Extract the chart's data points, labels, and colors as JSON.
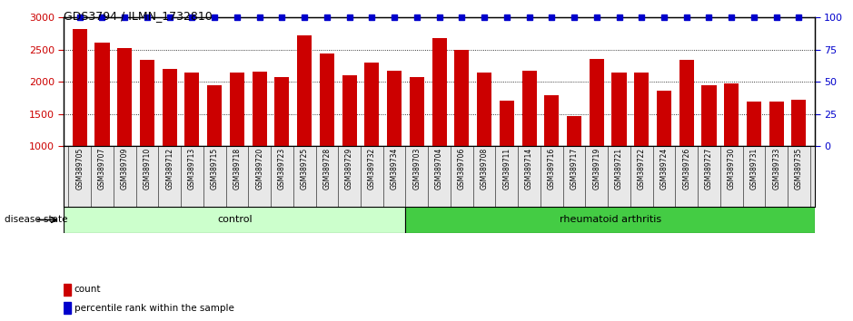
{
  "title": "GDS3794 / ILMN_1732810",
  "samples": [
    "GSM389705",
    "GSM389707",
    "GSM389709",
    "GSM389710",
    "GSM389712",
    "GSM389713",
    "GSM389715",
    "GSM389718",
    "GSM389720",
    "GSM389723",
    "GSM389725",
    "GSM389728",
    "GSM389729",
    "GSM389732",
    "GSM389734",
    "GSM389703",
    "GSM389704",
    "GSM389706",
    "GSM389708",
    "GSM389711",
    "GSM389714",
    "GSM389716",
    "GSM389717",
    "GSM389719",
    "GSM389721",
    "GSM389722",
    "GSM389724",
    "GSM389726",
    "GSM389727",
    "GSM389730",
    "GSM389731",
    "GSM389733",
    "GSM389735"
  ],
  "counts": [
    2830,
    2610,
    2520,
    2340,
    2200,
    2150,
    1950,
    2140,
    2160,
    2080,
    2720,
    2440,
    2100,
    2300,
    2170,
    2080,
    2680,
    2500,
    2140,
    1710,
    2170,
    1790,
    1470,
    2350,
    2150,
    2150,
    1860,
    2340,
    1950,
    1980,
    1690,
    1690,
    1720
  ],
  "percentile_ranks": [
    100,
    100,
    100,
    100,
    100,
    100,
    100,
    100,
    100,
    100,
    100,
    100,
    100,
    100,
    100,
    100,
    100,
    100,
    100,
    100,
    100,
    100,
    100,
    100,
    100,
    100,
    100,
    100,
    100,
    100,
    100,
    100,
    100
  ],
  "control_count": 15,
  "bar_color": "#cc0000",
  "percentile_color": "#0000cc",
  "control_bg": "#ccffcc",
  "ra_bg": "#44cc44",
  "ylim_left": [
    1000,
    3000
  ],
  "ylim_right": [
    0,
    100
  ],
  "yticks_left": [
    1000,
    1500,
    2000,
    2500,
    3000
  ],
  "yticks_right": [
    0,
    25,
    50,
    75,
    100
  ],
  "background_color": "#e8e8e8",
  "tick_bg_color": "#d0d0d0",
  "legend_count_color": "#cc0000",
  "legend_pct_color": "#0000cc"
}
